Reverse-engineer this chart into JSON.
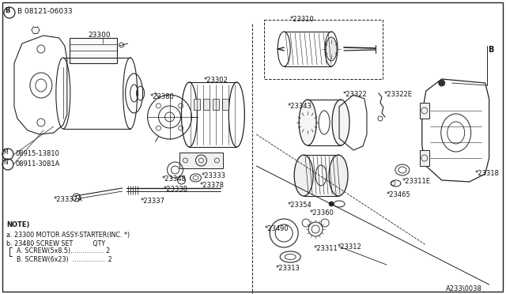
{
  "background_color": "#ffffff",
  "line_color": "#222222",
  "text_color": "#111111",
  "diagram_ref": "A233\\0038",
  "fig_width": 6.4,
  "fig_height": 3.72,
  "dpi": 100,
  "labels": {
    "B_bolt": "B 08121-06033",
    "part_23300": "23300",
    "part_23380": "*23380",
    "part_23302": "*23302",
    "part_23310": "*23310",
    "part_23322": "*23322",
    "part_23322E": "*23322E",
    "part_23343": "*23343",
    "part_23333": "*23333",
    "part_23348": "*23348",
    "part_23338": "*23338",
    "part_23378": "*23378",
    "part_23337A": "*23337A",
    "part_23337": "*23337",
    "part_23490": "*23490",
    "part_23311": "*23311",
    "part_23313": "*23313",
    "part_23354": "*23354",
    "part_23360": "*23360",
    "part_23465": "*23465",
    "part_23311E": "*23311E",
    "part_23318": "*23318",
    "part_23312": "*23312",
    "M_label": "08915-13810",
    "N_label": "08911-3081A",
    "label_B_right": "B",
    "note_title": "NOTE)",
    "note_a": "a. 23300 MOTOR ASSY-STARTER(INC. *)",
    "note_b": "b. 23480 SCREW SET          QTY",
    "note_b1": "  A. SCREW(5x8.5)................. 2",
    "note_b2": "  B. SCREW(6x23)  ................. 2"
  }
}
